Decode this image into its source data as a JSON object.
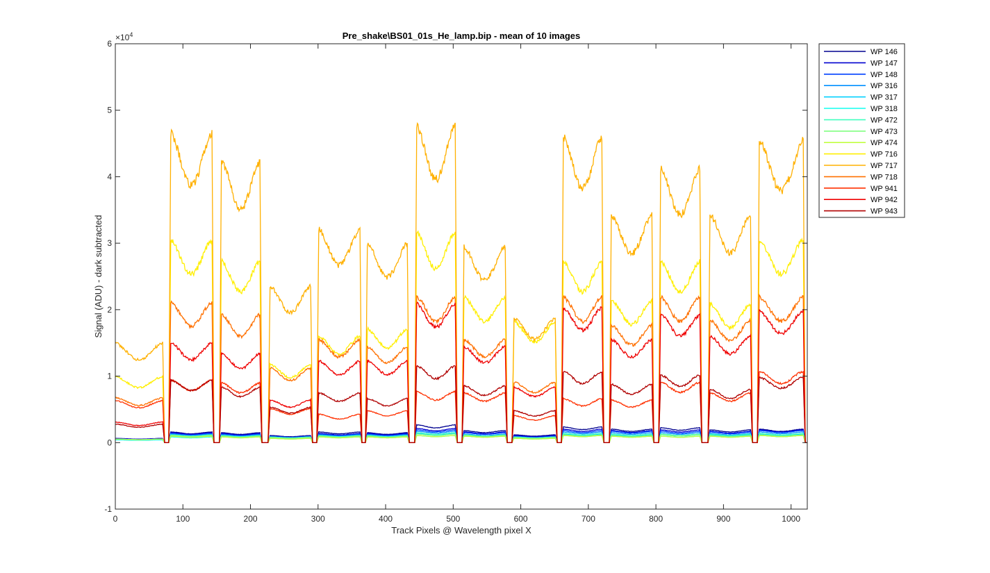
{
  "chart_data": {
    "type": "line",
    "title": "Pre_shake\\BS01_01s_He_lamp.bip - mean of 10 images",
    "xlabel": "Track Pixels @ Wavelength pixel X",
    "ylabel": "Signal (ADU) - dark subtracted",
    "y_exponent_label": "×10",
    "y_exponent_power": "4",
    "xlim": [
      0,
      1024
    ],
    "ylim": [
      -1,
      6
    ],
    "y_unit_scale": 10000,
    "x_ticks": [
      0,
      100,
      200,
      300,
      400,
      500,
      600,
      700,
      800,
      900,
      1000
    ],
    "y_ticks": [
      -1,
      0,
      1,
      2,
      3,
      4,
      5,
      6
    ],
    "grid": false,
    "legend_position": "outside-top-right",
    "segments": [
      {
        "start": 0,
        "end": 70
      },
      {
        "start": 82,
        "end": 143
      },
      {
        "start": 157,
        "end": 214
      },
      {
        "start": 229,
        "end": 289
      },
      {
        "start": 301,
        "end": 362
      },
      {
        "start": 373,
        "end": 432
      },
      {
        "start": 446,
        "end": 503
      },
      {
        "start": 516,
        "end": 577
      },
      {
        "start": 590,
        "end": 651
      },
      {
        "start": 663,
        "end": 720
      },
      {
        "start": 734,
        "end": 794
      },
      {
        "start": 807,
        "end": 865
      },
      {
        "start": 880,
        "end": 940
      },
      {
        "start": 953,
        "end": 1018
      }
    ],
    "series": [
      {
        "name": "WP 146",
        "color": "#00008f",
        "levels": [
          0.05,
          0.15,
          0.14,
          0.1,
          0.15,
          0.14,
          0.25,
          0.17,
          0.11,
          0.22,
          0.19,
          0.21,
          0.18,
          0.19
        ]
      },
      {
        "name": "WP 147",
        "color": "#0000d0",
        "levels": [
          0.06,
          0.14,
          0.13,
          0.09,
          0.13,
          0.13,
          0.2,
          0.15,
          0.1,
          0.19,
          0.17,
          0.18,
          0.16,
          0.18
        ]
      },
      {
        "name": "WP 148",
        "color": "#0040ff",
        "levels": [
          0.05,
          0.13,
          0.12,
          0.09,
          0.12,
          0.12,
          0.18,
          0.14,
          0.09,
          0.17,
          0.16,
          0.16,
          0.15,
          0.17
        ]
      },
      {
        "name": "WP 316",
        "color": "#0090ff",
        "levels": [
          0.05,
          0.12,
          0.11,
          0.08,
          0.11,
          0.11,
          0.16,
          0.12,
          0.08,
          0.15,
          0.14,
          0.14,
          0.13,
          0.15
        ]
      },
      {
        "name": "WP 317",
        "color": "#00d0ff",
        "levels": [
          0.04,
          0.1,
          0.09,
          0.07,
          0.09,
          0.09,
          0.13,
          0.1,
          0.07,
          0.12,
          0.11,
          0.11,
          0.11,
          0.12
        ]
      },
      {
        "name": "WP 318",
        "color": "#10ffef",
        "levels": [
          0.04,
          0.08,
          0.08,
          0.06,
          0.08,
          0.08,
          0.1,
          0.09,
          0.06,
          0.1,
          0.09,
          0.09,
          0.09,
          0.1
        ]
      },
      {
        "name": "WP 472",
        "color": "#40ffbf",
        "levels": [
          0.05,
          0.11,
          0.1,
          0.08,
          0.1,
          0.1,
          0.14,
          0.11,
          0.08,
          0.13,
          0.12,
          0.12,
          0.12,
          0.13
        ]
      },
      {
        "name": "WP 473",
        "color": "#80ff80",
        "levels": [
          0.05,
          0.1,
          0.09,
          0.07,
          0.09,
          0.09,
          0.12,
          0.1,
          0.07,
          0.11,
          0.1,
          0.11,
          0.1,
          0.11
        ]
      },
      {
        "name": "WP 474",
        "color": "#c0ff40",
        "levels": [
          0.05,
          0.09,
          0.08,
          0.06,
          0.08,
          0.08,
          0.1,
          0.09,
          0.06,
          0.1,
          0.09,
          0.09,
          0.09,
          0.1
        ]
      },
      {
        "name": "WP 716",
        "color": "#ffef00",
        "levels": [
          0.93,
          2.85,
          2.55,
          1.1,
          1.5,
          1.6,
          2.95,
          2.05,
          1.7,
          2.55,
          2.0,
          2.55,
          1.95,
          2.85
        ]
      },
      {
        "name": "WP 717",
        "color": "#ffb000",
        "levels": [
          1.4,
          4.35,
          3.95,
          2.2,
          3.0,
          2.8,
          4.45,
          2.75,
          1.75,
          4.3,
          3.2,
          3.85,
          3.2,
          4.25
        ]
      },
      {
        "name": "WP 718",
        "color": "#ff7000",
        "levels": [
          0.63,
          1.97,
          1.8,
          1.05,
          1.45,
          1.35,
          2.05,
          1.45,
          0.85,
          2.05,
          1.65,
          2.05,
          1.72,
          2.05
        ]
      },
      {
        "name": "WP 941",
        "color": "#ff3000",
        "levels": [
          0.59,
          0.88,
          0.84,
          0.48,
          0.4,
          0.45,
          0.72,
          0.7,
          0.38,
          0.62,
          0.6,
          0.85,
          0.7,
          1.0
        ]
      },
      {
        "name": "WP 942",
        "color": "#ef0000",
        "levels": [
          0.29,
          1.4,
          1.25,
          0.6,
          1.15,
          1.15,
          1.95,
          1.35,
          0.78,
          1.9,
          1.45,
          1.8,
          1.5,
          1.85
        ]
      },
      {
        "name": "WP 943",
        "color": "#b00000",
        "levels": [
          0.26,
          0.88,
          0.78,
          0.5,
          0.7,
          0.62,
          1.08,
          0.8,
          0.45,
          1.0,
          0.82,
          0.95,
          0.75,
          0.92
        ]
      }
    ]
  }
}
